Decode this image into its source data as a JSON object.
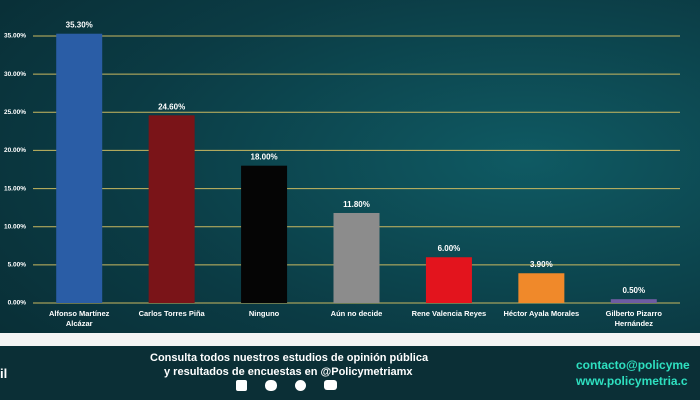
{
  "chart_data": {
    "type": "bar",
    "categories": [
      "Alfonso Martínez Alcázar",
      "Carlos Torres Piña",
      "Ninguno",
      "Aún no decide",
      "Rene Valencia Reyes",
      "Héctor Ayala Morales",
      "Gilberto Pizarro Hernández"
    ],
    "values": [
      35.3,
      24.6,
      18.0,
      11.8,
      6.0,
      3.9,
      0.5
    ],
    "value_labels": [
      "35.30%",
      "24.60%",
      "18.00%",
      "11.80%",
      "6.00%",
      "3.90%",
      "0.50%"
    ],
    "colors": [
      "#2a5da6",
      "#7a1418",
      "#050505",
      "#8c8c8c",
      "#e3141d",
      "#f0892a",
      "#6e5ca3"
    ],
    "ylim": [
      0,
      35
    ],
    "yticks": [
      {
        "value": 0,
        "label": "0.00%"
      },
      {
        "value": 5,
        "label": "5.00%"
      },
      {
        "value": 10,
        "label": "10.00%"
      },
      {
        "value": 15,
        "label": "15.00%"
      },
      {
        "value": 20,
        "label": "20.00%"
      },
      {
        "value": 25,
        "label": "25.00%"
      },
      {
        "value": 30,
        "label": "30.00%"
      },
      {
        "value": 35,
        "label": "35.00%"
      }
    ],
    "grid": true
  },
  "footer": {
    "left": "il",
    "line1": "Consulta todos nuestros estudios de opinión pública",
    "line2": "y resultados de encuestas en @Policymetriamx",
    "email": "contacto@policyme",
    "web": "www.policymetria.c"
  }
}
